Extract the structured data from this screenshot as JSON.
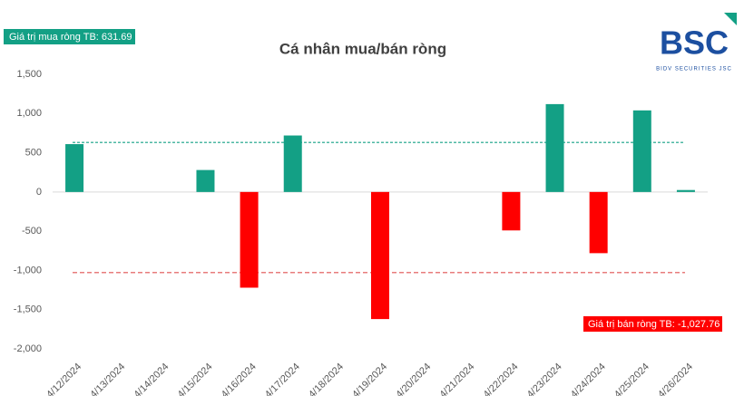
{
  "chart_data": {
    "type": "bar",
    "title": "Cá nhân mua/bán ròng",
    "categories": [
      "4/12/2024",
      "4/13/2024",
      "4/14/2024",
      "4/15/2024",
      "4/16/2024",
      "4/17/2024",
      "4/18/2024",
      "4/19/2024",
      "4/20/2024",
      "4/21/2024",
      "4/22/2024",
      "4/23/2024",
      "4/24/2024",
      "4/25/2024",
      "4/26/2024"
    ],
    "values": [
      610,
      null,
      null,
      280,
      -1220,
      720,
      null,
      -1620,
      null,
      null,
      -490,
      1120,
      -780,
      1040,
      25
    ],
    "positive_color": "#13a085",
    "negative_color": "#ff0000",
    "ylim": [
      -2000,
      1500
    ],
    "yticks": [
      {
        "value": 1500,
        "label": "1,500"
      },
      {
        "value": 1000,
        "label": "1,000"
      },
      500,
      0,
      -500,
      {
        "value": -1000,
        "label": "-1,000"
      },
      {
        "value": -1500,
        "label": "-1,500"
      },
      {
        "value": -2000,
        "label": "-2,000"
      }
    ],
    "reference_lines": [
      {
        "value": 631.69,
        "label": "Giá trị mua ròng TB: 631.69",
        "color": "#13a085"
      },
      {
        "value": -1027.76,
        "label": "Giá trị bán ròng TB: -1,027.76",
        "color": "#e05050"
      }
    ],
    "logo": {
      "name": "BSC",
      "subtitle": "BIDV SECURITIES JSC"
    }
  }
}
